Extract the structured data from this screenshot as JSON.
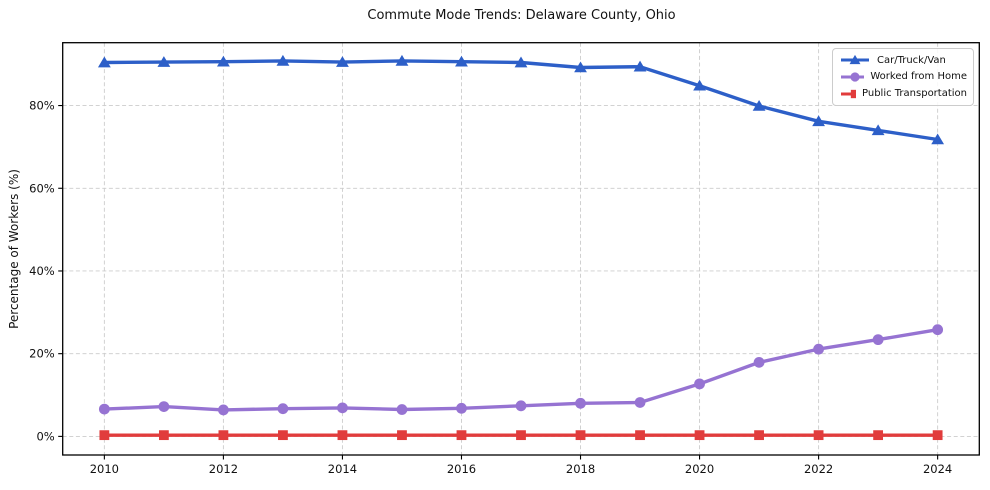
{
  "chart_data": {
    "type": "line",
    "title": "Commute Mode Trends: Delaware County, Ohio",
    "xlabel": "",
    "ylabel": "Percentage of Workers (%)",
    "x": [
      2010,
      2011,
      2012,
      2013,
      2014,
      2015,
      2016,
      2017,
      2018,
      2019,
      2020,
      2021,
      2022,
      2023,
      2024
    ],
    "series": [
      {
        "id": "car-truck-van",
        "name": "Car/Truck/Van",
        "color": "#2d5fc8",
        "marker": "triangle",
        "values": [
          90.4,
          90.5,
          90.6,
          90.8,
          90.5,
          90.8,
          90.6,
          90.4,
          89.2,
          89.4,
          84.8,
          79.9,
          76.2,
          74.0,
          71.8
        ]
      },
      {
        "id": "worked-from-home",
        "name": "Worked from Home",
        "color": "#9673d2",
        "marker": "circle",
        "values": [
          6.6,
          7.2,
          6.4,
          6.7,
          6.9,
          6.5,
          6.8,
          7.4,
          8.0,
          8.2,
          12.7,
          17.9,
          21.1,
          23.4,
          25.8
        ]
      },
      {
        "id": "public-transportation",
        "name": "Public Transportation",
        "color": "#e13c3c",
        "marker": "square",
        "values": [
          0.3,
          0.3,
          0.3,
          0.3,
          0.3,
          0.3,
          0.3,
          0.3,
          0.3,
          0.3,
          0.3,
          0.3,
          0.3,
          0.3,
          0.3
        ]
      }
    ],
    "xticks": [
      {
        "value": 2010,
        "label": "2010"
      },
      {
        "value": 2012,
        "label": "2012"
      },
      {
        "value": 2014,
        "label": "2014"
      },
      {
        "value": 2016,
        "label": "2016"
      },
      {
        "value": 2018,
        "label": "2018"
      },
      {
        "value": 2020,
        "label": "2020"
      },
      {
        "value": 2022,
        "label": "2022"
      },
      {
        "value": 2024,
        "label": "2024"
      }
    ],
    "yticks": [
      {
        "value": 0,
        "label": "0%"
      },
      {
        "value": 20,
        "label": "20%"
      },
      {
        "value": 40,
        "label": "40%"
      },
      {
        "value": 60,
        "label": "60%"
      },
      {
        "value": 80,
        "label": "80%"
      }
    ],
    "xlim": [
      2009.3,
      2024.7
    ],
    "ylim": [
      -4.5,
      95.2
    ],
    "grid": true,
    "grid_color": "#cccccc",
    "spine_color": "#000000",
    "tick_color": "#000000",
    "background_color": "#ffffff",
    "legend_position": "upper right"
  }
}
